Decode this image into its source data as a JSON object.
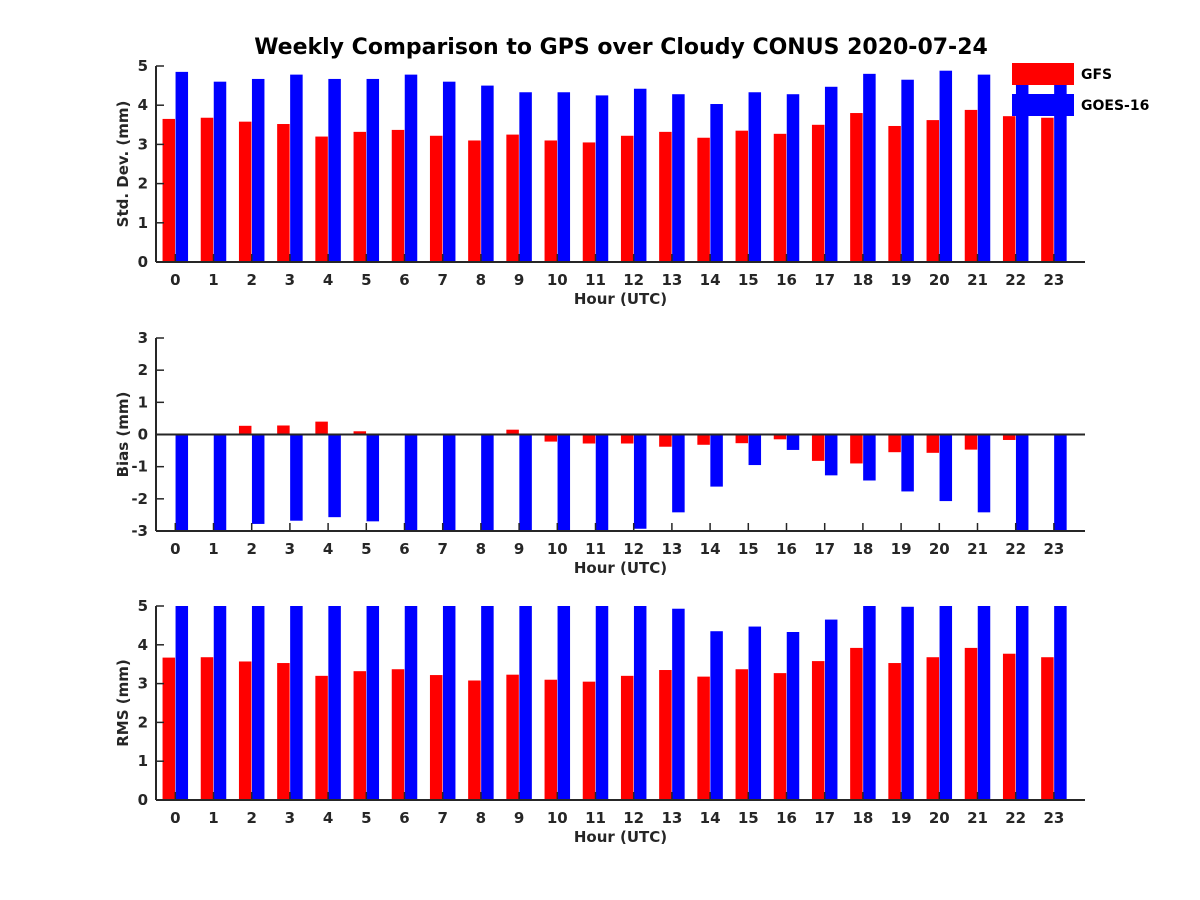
{
  "title": "Weekly Comparison to GPS over Cloudy CONUS 2020-07-24",
  "legend": [
    {
      "label": "GFS",
      "color": "#ff0000"
    },
    {
      "label": "GOES-16",
      "color": "#0000ff"
    }
  ],
  "chart_data": [
    {
      "type": "bar",
      "ylabel": "Std. Dev. (mm)",
      "xlabel": "Hour (UTC)",
      "ylim": [
        0,
        5
      ],
      "yticks": [
        0,
        1,
        2,
        3,
        4,
        5
      ],
      "categories": [
        "0",
        "1",
        "2",
        "3",
        "4",
        "5",
        "6",
        "7",
        "8",
        "9",
        "10",
        "11",
        "12",
        "13",
        "14",
        "15",
        "16",
        "17",
        "18",
        "19",
        "20",
        "21",
        "22",
        "23"
      ],
      "series": [
        {
          "name": "GFS",
          "values": [
            3.65,
            3.68,
            3.58,
            3.52,
            3.2,
            3.32,
            3.37,
            3.22,
            3.1,
            3.25,
            3.1,
            3.05,
            3.22,
            3.32,
            3.17,
            3.35,
            3.27,
            3.5,
            3.8,
            3.47,
            3.62,
            3.88,
            3.72,
            3.68
          ]
        },
        {
          "name": "GOES-16",
          "values": [
            4.85,
            4.6,
            4.67,
            4.78,
            4.67,
            4.67,
            4.78,
            4.6,
            4.5,
            4.33,
            4.33,
            4.25,
            4.42,
            4.28,
            4.03,
            4.33,
            4.28,
            4.47,
            4.8,
            4.65,
            4.88,
            4.78,
            4.73,
            4.6
          ]
        }
      ]
    },
    {
      "type": "bar",
      "ylabel": "Bias (mm)",
      "xlabel": "Hour (UTC)",
      "ylim": [
        -3,
        3
      ],
      "yticks": [
        -3,
        -2,
        -1,
        0,
        1,
        2,
        3
      ],
      "categories": [
        "0",
        "1",
        "2",
        "3",
        "4",
        "5",
        "6",
        "7",
        "8",
        "9",
        "10",
        "11",
        "12",
        "13",
        "14",
        "15",
        "16",
        "17",
        "18",
        "19",
        "20",
        "21",
        "22",
        "23"
      ],
      "series": [
        {
          "name": "GFS",
          "values": [
            0.0,
            0.02,
            0.27,
            0.28,
            0.4,
            0.1,
            0.02,
            0.02,
            0.02,
            0.15,
            -0.22,
            -0.28,
            -0.28,
            -0.38,
            -0.32,
            -0.27,
            -0.15,
            -0.82,
            -0.9,
            -0.55,
            -0.57,
            -0.47,
            -0.17,
            0.0
          ]
        },
        {
          "name": "GOES-16",
          "values": [
            -3.0,
            -3.0,
            -2.78,
            -2.68,
            -2.57,
            -2.7,
            -3.0,
            -3.0,
            -3.0,
            -3.0,
            -3.0,
            -3.0,
            -2.93,
            -2.42,
            -1.62,
            -0.95,
            -0.48,
            -1.27,
            -1.43,
            -1.77,
            -2.07,
            -2.42,
            -3.0,
            -3.0
          ]
        }
      ]
    },
    {
      "type": "bar",
      "ylabel": "RMS (mm)",
      "xlabel": "Hour (UTC)",
      "ylim": [
        0,
        5
      ],
      "yticks": [
        0,
        1,
        2,
        3,
        4,
        5
      ],
      "categories": [
        "0",
        "1",
        "2",
        "3",
        "4",
        "5",
        "6",
        "7",
        "8",
        "9",
        "10",
        "11",
        "12",
        "13",
        "14",
        "15",
        "16",
        "17",
        "18",
        "19",
        "20",
        "21",
        "22",
        "23"
      ],
      "series": [
        {
          "name": "GFS",
          "values": [
            3.67,
            3.68,
            3.57,
            3.53,
            3.2,
            3.32,
            3.37,
            3.22,
            3.08,
            3.23,
            3.1,
            3.05,
            3.2,
            3.35,
            3.18,
            3.37,
            3.27,
            3.58,
            3.92,
            3.53,
            3.68,
            3.92,
            3.77,
            3.68
          ]
        },
        {
          "name": "GOES-16",
          "values": [
            5.0,
            5.0,
            5.0,
            5.0,
            5.0,
            5.0,
            5.0,
            5.0,
            5.0,
            5.0,
            5.0,
            5.0,
            5.0,
            4.93,
            4.35,
            4.47,
            4.33,
            4.65,
            5.0,
            4.98,
            5.0,
            5.0,
            5.0,
            5.0
          ]
        }
      ]
    }
  ]
}
